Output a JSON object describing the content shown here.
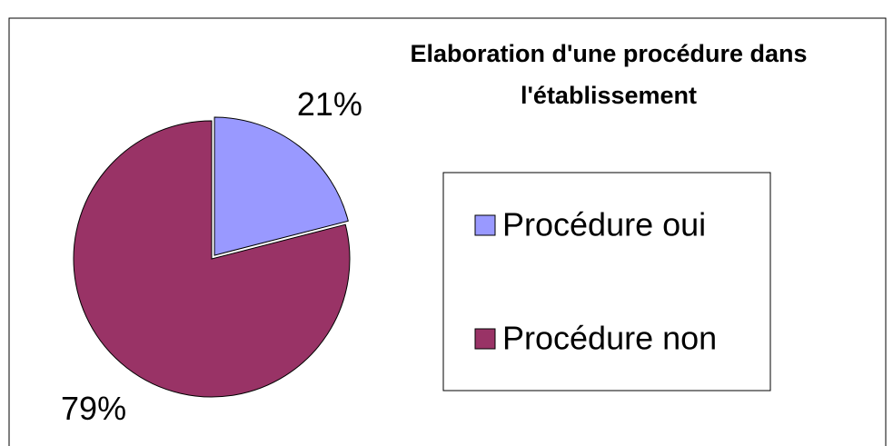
{
  "chart_data": {
    "type": "pie",
    "title": "Elaboration d'une procédure dans l'établissement",
    "categories": [
      "Procédure oui",
      "Procédure non"
    ],
    "values": [
      21,
      79
    ],
    "value_labels": [
      "21%",
      "79%"
    ],
    "colors": [
      "#9999ff",
      "#993366"
    ],
    "legend": "right"
  }
}
